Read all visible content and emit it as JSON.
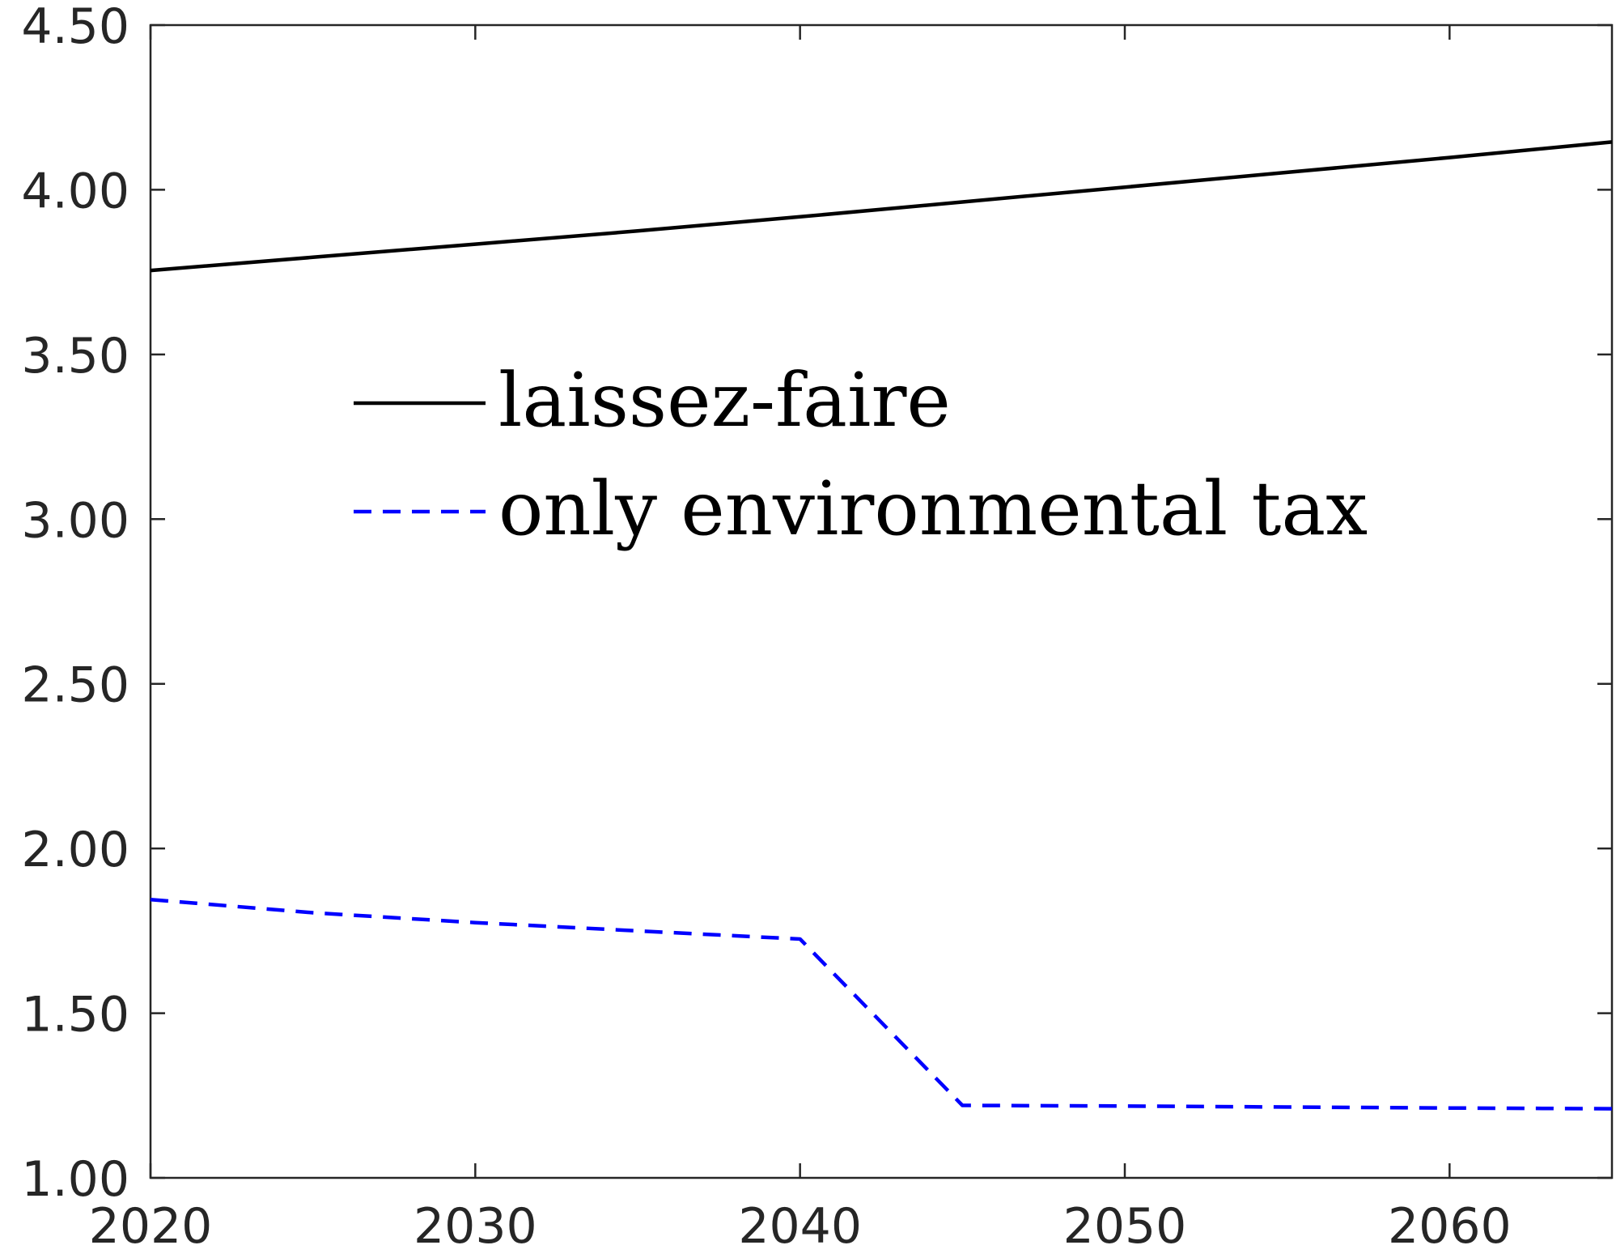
{
  "chart_data": {
    "type": "line",
    "title": "",
    "xlabel": "",
    "ylabel": "",
    "xlim": [
      2020,
      2065
    ],
    "ylim": [
      1.0,
      4.5
    ],
    "xticks": [
      2020,
      2030,
      2040,
      2050,
      2060
    ],
    "xtick_labels": [
      "2020",
      "2030",
      "2040",
      "2050",
      "2060"
    ],
    "yticks": [
      1.0,
      1.5,
      2.0,
      2.5,
      3.0,
      3.5,
      4.0,
      4.5
    ],
    "ytick_labels": [
      "1.00",
      "1.50",
      "2.00",
      "2.50",
      "3.00",
      "3.50",
      "4.00",
      "4.50"
    ],
    "grid": false,
    "legend_position": "upper-left-inside",
    "series": [
      {
        "name": "laissez-faire",
        "color": "#000000",
        "style": "solid",
        "x": [
          2020,
          2025,
          2030,
          2035,
          2040,
          2045,
          2050,
          2055,
          2060,
          2065
        ],
        "y": [
          3.755,
          3.795,
          3.835,
          3.875,
          3.918,
          3.963,
          4.008,
          4.053,
          4.098,
          4.145
        ]
      },
      {
        "name": "only environmental tax",
        "color": "#0000ff",
        "style": "dashed",
        "x": [
          2020,
          2025,
          2030,
          2035,
          2040,
          2045,
          2050,
          2055,
          2060,
          2065
        ],
        "y": [
          1.845,
          1.805,
          1.775,
          1.75,
          1.725,
          1.22,
          1.218,
          1.215,
          1.212,
          1.21
        ]
      }
    ]
  }
}
